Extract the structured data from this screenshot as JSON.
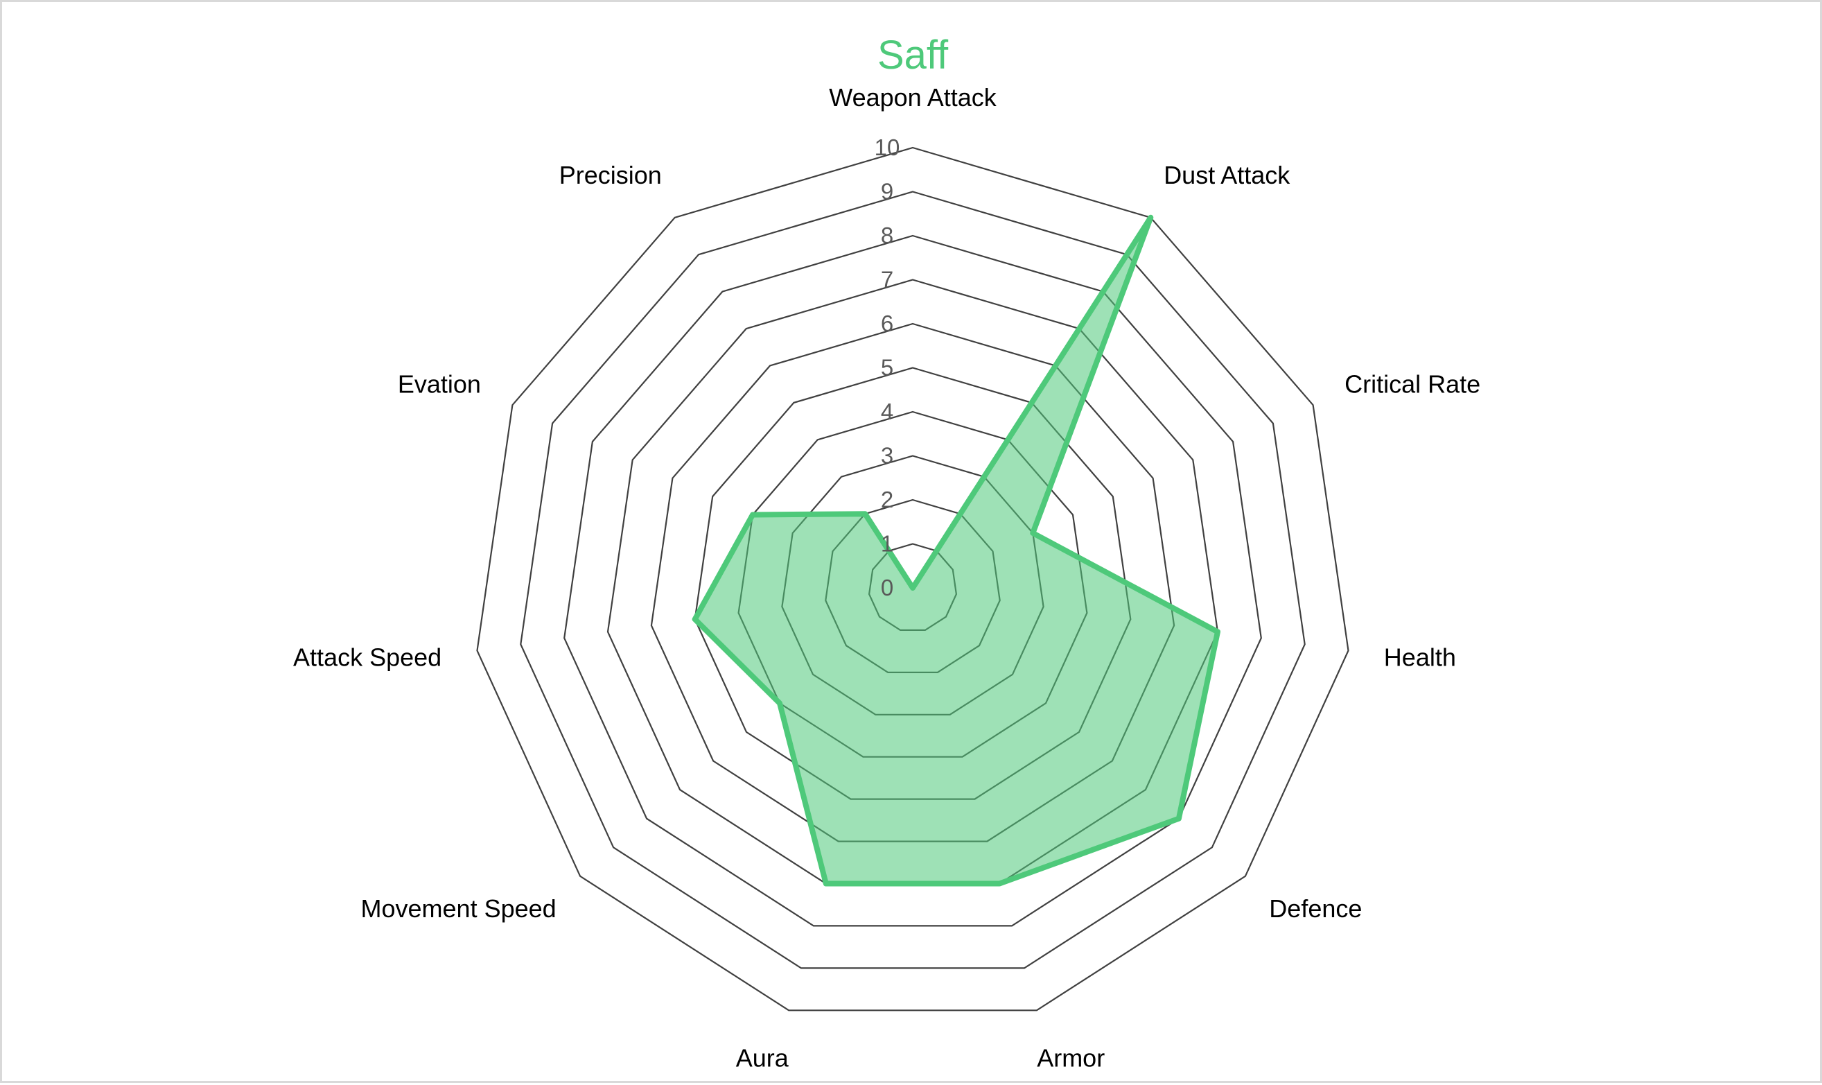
{
  "chart_data": {
    "type": "radar",
    "title": "Saff",
    "categories": [
      "Weapon Attack",
      "Dust Attack",
      "Critical Rate",
      "Health",
      "Defence",
      "Armor",
      "Aura",
      "Movement Speed",
      "Attack Speed",
      "Evation",
      "Precision"
    ],
    "series": [
      {
        "values": [
          0,
          10,
          3,
          7,
          8,
          7,
          7,
          4,
          5,
          4,
          2
        ],
        "color": "#4ec97a",
        "fill": "#4ec97a"
      }
    ],
    "rlim": [
      0,
      10
    ],
    "ticks": [
      "0",
      "1",
      "2",
      "3",
      "4",
      "5",
      "6",
      "7",
      "8",
      "9",
      "10"
    ],
    "grid": true,
    "legend": "none",
    "colors": {
      "title": "#4ec97a",
      "grid": "#404040",
      "tick_labels": "#595959",
      "category_labels": "#000000",
      "border": "#d9d9d9"
    }
  }
}
